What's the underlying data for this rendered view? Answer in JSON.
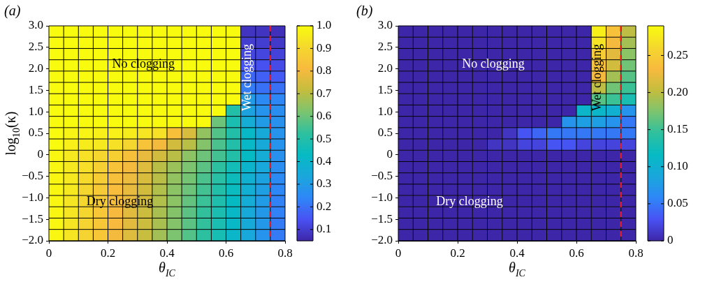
{
  "chart_data": [
    {
      "type": "heatmap",
      "grid": true,
      "title": "(a)",
      "xlabel": "θ$_{IC}$",
      "ylabel": "log$_{10}$(κ)",
      "x": [
        0.025,
        0.075,
        0.125,
        0.175,
        0.225,
        0.275,
        0.325,
        0.375,
        0.425,
        0.475,
        0.525,
        0.575,
        0.625,
        0.675,
        0.725,
        0.775
      ],
      "y": [
        2.868,
        2.605,
        2.342,
        2.079,
        1.816,
        1.553,
        1.289,
        1.026,
        0.763,
        0.5,
        0.237,
        -0.026,
        -0.289,
        -0.553,
        -0.816,
        -1.079,
        -1.342,
        -1.605,
        -1.868
      ],
      "cells": [
        [
          1,
          1,
          1,
          1,
          1,
          1,
          1,
          1,
          1,
          1,
          1,
          1,
          1,
          0.08,
          0.08,
          0.07
        ],
        [
          1,
          1,
          1,
          1,
          1,
          1,
          1,
          1,
          1,
          1,
          1,
          1,
          1,
          0.1,
          0.1,
          0.09
        ],
        [
          1,
          1,
          1,
          1,
          1,
          1,
          1,
          1,
          1,
          1,
          1,
          1,
          1,
          0.12,
          0.12,
          0.11
        ],
        [
          1,
          1,
          1,
          1,
          1,
          1,
          1,
          1,
          1,
          1,
          1,
          1,
          1,
          0.15,
          0.14,
          0.13
        ],
        [
          1,
          1,
          1,
          1,
          1,
          1,
          1,
          1,
          1,
          1,
          1,
          1,
          1,
          0.18,
          0.17,
          0.16
        ],
        [
          1,
          1,
          1,
          1,
          1,
          1,
          1,
          1,
          1,
          1,
          1,
          1,
          1,
          0.22,
          0.2,
          0.2
        ],
        [
          1,
          1,
          1,
          1,
          1,
          1,
          1,
          1,
          1,
          1,
          1,
          1,
          1,
          0.3,
          0.25,
          0.24
        ],
        [
          1,
          1,
          1,
          1,
          1,
          1,
          1,
          1,
          1,
          1,
          1,
          1,
          0.5,
          0.32,
          0.28,
          0.26
        ],
        [
          1,
          1,
          1,
          1,
          1,
          1,
          1,
          1,
          1,
          1,
          1,
          0.6,
          0.48,
          0.36,
          0.3,
          0.27
        ],
        [
          1,
          0.98,
          0.98,
          0.97,
          0.97,
          0.96,
          0.94,
          0.93,
          0.83,
          0.75,
          0.65,
          0.57,
          0.5,
          0.42,
          0.35,
          0.28
        ],
        [
          1,
          0.97,
          0.96,
          0.95,
          0.93,
          0.9,
          0.84,
          0.8,
          0.74,
          0.7,
          0.63,
          0.56,
          0.5,
          0.42,
          0.35,
          0.28
        ],
        [
          0.99,
          0.95,
          0.93,
          0.9,
          0.88,
          0.83,
          0.78,
          0.74,
          0.7,
          0.64,
          0.6,
          0.55,
          0.5,
          0.43,
          0.36,
          0.27
        ],
        [
          0.99,
          0.95,
          0.92,
          0.88,
          0.84,
          0.8,
          0.76,
          0.7,
          0.66,
          0.62,
          0.58,
          0.52,
          0.46,
          0.4,
          0.34,
          0.26
        ],
        [
          0.99,
          0.95,
          0.91,
          0.87,
          0.83,
          0.79,
          0.75,
          0.7,
          0.65,
          0.61,
          0.56,
          0.51,
          0.45,
          0.38,
          0.32,
          0.25
        ],
        [
          0.99,
          0.95,
          0.9,
          0.86,
          0.82,
          0.78,
          0.74,
          0.69,
          0.64,
          0.6,
          0.55,
          0.5,
          0.44,
          0.37,
          0.31,
          0.24
        ],
        [
          0.99,
          0.94,
          0.9,
          0.86,
          0.82,
          0.78,
          0.74,
          0.69,
          0.64,
          0.59,
          0.54,
          0.49,
          0.43,
          0.36,
          0.3,
          0.23
        ],
        [
          0.99,
          0.94,
          0.9,
          0.85,
          0.81,
          0.77,
          0.73,
          0.68,
          0.63,
          0.58,
          0.53,
          0.48,
          0.42,
          0.35,
          0.29,
          0.23
        ],
        [
          0.99,
          0.94,
          0.89,
          0.85,
          0.81,
          0.77,
          0.73,
          0.68,
          0.63,
          0.58,
          0.53,
          0.48,
          0.42,
          0.35,
          0.29,
          0.22
        ],
        [
          0.99,
          0.94,
          0.89,
          0.85,
          0.8,
          0.76,
          0.72,
          0.67,
          0.62,
          0.57,
          0.52,
          0.47,
          0.41,
          0.34,
          0.28,
          0.22
        ]
      ],
      "clim": [
        0.05,
        1
      ],
      "cticks": [
        0.1,
        0.2,
        0.3,
        0.4,
        0.5,
        0.6,
        0.7,
        0.8,
        0.9,
        {
          "value": 1,
          "label": "1.0"
        }
      ],
      "xlim": [
        0,
        0.8
      ],
      "xticks": [
        0,
        0.2,
        0.4,
        0.6,
        0.8
      ],
      "ylim": [
        -2,
        3
      ],
      "yticks": [
        {
          "value": -2,
          "label": "−2.0"
        },
        {
          "value": -1.5,
          "label": "−1.5"
        },
        {
          "value": -1,
          "label": "−1.0"
        },
        {
          "value": -0.5,
          "label": "−0.5"
        },
        0,
        0.5,
        {
          "value": 1,
          "label": "1.0"
        },
        1.5,
        {
          "value": 2,
          "label": "2.0"
        },
        2.5,
        {
          "value": 3,
          "label": "3.0"
        }
      ],
      "ref_lines": [
        {
          "axis": "x",
          "value": 0.75,
          "color": "#e8191c",
          "line_style": "dashed"
        }
      ],
      "annotations": [
        "No clogging",
        "Wet clogging",
        "Dry clogging"
      ]
    },
    {
      "type": "heatmap",
      "grid": true,
      "title": "(b)",
      "xlabel": "θ$_{IC}$",
      "x": [
        0.025,
        0.075,
        0.125,
        0.175,
        0.225,
        0.275,
        0.325,
        0.375,
        0.425,
        0.475,
        0.525,
        0.575,
        0.625,
        0.675,
        0.725,
        0.775
      ],
      "y": [
        2.868,
        2.605,
        2.342,
        2.079,
        1.816,
        1.553,
        1.289,
        1.026,
        0.763,
        0.5,
        0.237,
        -0.026,
        -0.289,
        -0.553,
        -0.816,
        -1.079,
        -1.342,
        -1.605,
        -1.868
      ],
      "cells": [
        [
          0,
          0,
          0,
          0,
          0,
          0,
          0,
          0,
          0,
          0,
          0,
          0,
          0,
          0.28,
          0.24,
          0.2
        ],
        [
          0,
          0,
          0,
          0,
          0,
          0,
          0,
          0,
          0,
          0,
          0,
          0,
          0,
          0.27,
          0.23,
          0.19
        ],
        [
          0,
          0,
          0,
          0,
          0,
          0,
          0,
          0,
          0,
          0,
          0,
          0,
          0,
          0.25,
          0.22,
          0.18
        ],
        [
          0,
          0,
          0,
          0,
          0,
          0,
          0,
          0,
          0,
          0,
          0,
          0,
          0,
          0.24,
          0.21,
          0.17
        ],
        [
          0,
          0,
          0,
          0,
          0,
          0,
          0,
          0,
          0,
          0,
          0,
          0,
          0,
          0.23,
          0.19,
          0.16
        ],
        [
          0,
          0,
          0,
          0,
          0,
          0,
          0,
          0,
          0,
          0,
          0,
          0,
          0,
          0.2,
          0.17,
          0.15
        ],
        [
          0,
          0,
          0,
          0,
          0,
          0,
          0,
          0,
          0,
          0,
          0,
          0,
          0,
          0.16,
          0.15,
          0.13
        ],
        [
          0,
          0,
          0,
          0,
          0,
          0,
          0,
          0,
          0,
          0,
          0,
          0,
          0.11,
          0.11,
          0.1,
          0.07
        ],
        [
          0,
          0,
          0,
          0,
          0,
          0,
          0,
          0,
          0,
          0,
          0,
          0.07,
          0.08,
          0.08,
          0.07,
          0.05
        ],
        [
          0,
          0,
          0,
          0,
          0,
          0,
          0,
          0.01,
          0.03,
          0.04,
          0.05,
          0.05,
          0.05,
          0.05,
          0.05,
          0.05
        ],
        [
          0,
          0,
          0,
          0,
          0,
          0,
          0.01,
          0.01,
          0.02,
          0.02,
          0.03,
          0.03,
          0.02,
          0.02,
          0.02,
          0.02
        ],
        [
          0,
          0,
          0,
          0,
          0,
          0,
          0,
          0,
          0,
          0,
          0,
          0,
          0,
          0,
          0,
          0
        ],
        [
          0,
          0,
          0,
          0,
          0,
          0,
          0,
          0,
          0,
          0,
          0,
          0,
          0,
          0,
          0,
          0
        ],
        [
          0,
          0,
          0,
          0,
          0,
          0,
          0,
          0,
          0,
          0,
          0,
          0,
          0,
          0,
          0,
          0
        ],
        [
          0,
          0,
          0,
          0,
          0,
          0,
          0,
          0,
          0,
          0,
          0,
          0,
          0,
          0,
          0,
          0
        ],
        [
          0,
          0,
          0,
          0,
          0,
          0,
          0,
          0,
          0,
          0,
          0,
          0,
          0,
          0,
          0,
          0
        ],
        [
          0,
          0,
          0,
          0,
          0,
          0,
          0,
          0,
          0,
          0,
          0,
          0,
          0,
          0,
          0,
          0
        ],
        [
          0,
          0,
          0,
          0,
          0,
          0,
          0,
          0,
          0,
          0,
          0,
          0,
          0,
          0,
          0,
          0
        ],
        [
          0,
          0,
          0,
          0,
          0,
          0,
          0,
          0,
          0,
          0,
          0,
          0,
          0,
          0,
          0,
          0
        ]
      ],
      "clim": [
        0,
        0.29
      ],
      "cticks": [
        0,
        0.05,
        {
          "value": 0.1,
          "label": "0.10"
        },
        0.15,
        {
          "value": 0.2,
          "label": "0.20"
        },
        0.25
      ],
      "xlim": [
        0,
        0.8
      ],
      "xticks": [
        0,
        0.2,
        0.4,
        0.6,
        0.8
      ],
      "ylim": [
        -2,
        3
      ],
      "yticks": [
        {
          "value": -2,
          "label": "−2.0"
        },
        {
          "value": -1.5,
          "label": "−1.5"
        },
        {
          "value": -1,
          "label": "−1.0"
        },
        {
          "value": -0.5,
          "label": "−0.5"
        },
        0,
        0.5,
        {
          "value": 1,
          "label": "1.0"
        },
        1.5,
        {
          "value": 2,
          "label": "2.0"
        },
        2.5,
        {
          "value": 3,
          "label": "3.0"
        }
      ],
      "ref_lines": [
        {
          "axis": "x",
          "value": 0.75,
          "color": "#e8191c",
          "line_style": "dashed"
        }
      ],
      "annotations": [
        "No clogging",
        "Wet clogging",
        "Dry clogging"
      ]
    }
  ]
}
